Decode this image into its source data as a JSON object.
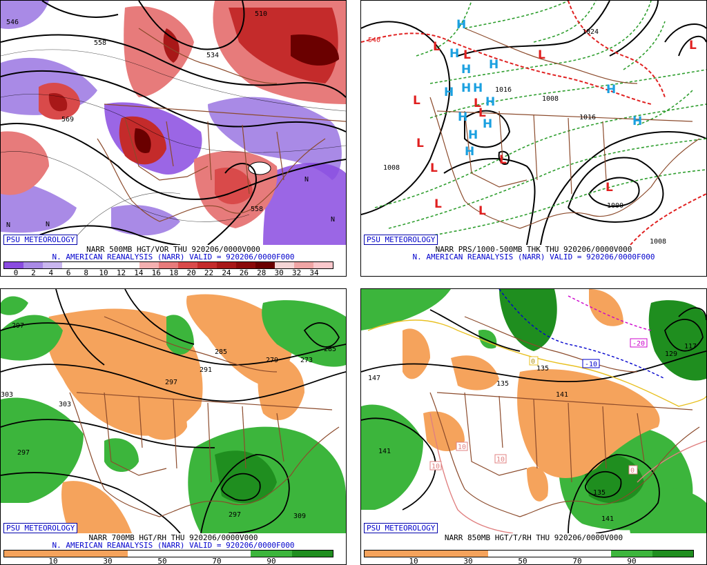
{
  "panels": [
    {
      "id": "vor500",
      "badge": "PSU METEOROLOGY",
      "line1": "NARR 500MB HGT/VOR THU 920206/0000V000",
      "line2": "N. AMERICAN REANALYSIS (NARR) VALID = 920206/0000F000",
      "contour_labels": [
        "546",
        "558",
        "510",
        "534",
        "569",
        "558"
      ],
      "colorbar": {
        "colors": [
          "#8a4be0",
          "#a98ae6",
          "#c9b6ef",
          "#ffffff",
          "#ffffff",
          "#ffffff",
          "#ffffff",
          "#f4b0b0",
          "#e77b7b",
          "#d94a4a",
          "#c42b2b",
          "#a81818",
          "#8a0a0a",
          "#6a0000",
          "#f5d5d5",
          "#f0a5a5",
          "#fbc8cc"
        ],
        "labels": [
          "0",
          "2",
          "4",
          "6",
          "8",
          "10",
          "12",
          "14",
          "16",
          "18",
          "20",
          "22",
          "24",
          "26",
          "28",
          "30",
          "32",
          "34"
        ]
      }
    },
    {
      "id": "mslp",
      "badge": "PSU METEOROLOGY",
      "line1": "NARR PRS/1000-500MB THK THU 920206/0000V000",
      "line2": "N. AMERICAN REANALYSIS (NARR) VALID = 920206/0000F000",
      "contour_labels": [
        "540",
        "1024",
        "1016",
        "1008",
        "1008",
        "1000",
        "1016",
        "1008"
      ],
      "high_symbol": "H",
      "low_symbol": "L"
    },
    {
      "id": "rh700",
      "badge": "PSU METEOROLOGY",
      "line1": "NARR 700MB HGT/RH THU 920206/0000V000",
      "line2": "N. AMERICAN REANALYSIS (NARR) VALID = 920206/0000F000",
      "contour_labels": [
        "297",
        "285",
        "291",
        "297",
        "279",
        "273",
        "285",
        "303",
        "303",
        "297",
        "297",
        "309"
      ],
      "colorbar": {
        "colors": [
          "#f5a35c",
          "#f5a35c",
          "#f5a35c",
          "#ffffff",
          "#ffffff",
          "#ffffff",
          "#3cb53c",
          "#1f8e1f"
        ],
        "labels": [
          "10",
          "30",
          "50",
          "70",
          "90"
        ]
      }
    },
    {
      "id": "rh850",
      "badge": "PSU METEOROLOGY",
      "line1": "NARR 850MB HGT/T/RH THU 920206/0000V000",
      "line2": "",
      "contour_labels": [
        "147",
        "135",
        "141",
        "135",
        "141",
        "141",
        "135",
        "129",
        "117"
      ],
      "temp_labels": [
        "-20",
        "-10",
        "10",
        "10",
        "10",
        "0",
        "0"
      ],
      "colorbar": {
        "colors": [
          "#f5a35c",
          "#f5a35c",
          "#f5a35c",
          "#ffffff",
          "#ffffff",
          "#ffffff",
          "#3cb53c",
          "#1f8e1f"
        ],
        "labels": [
          "10",
          "30",
          "50",
          "70",
          "90"
        ]
      }
    }
  ]
}
